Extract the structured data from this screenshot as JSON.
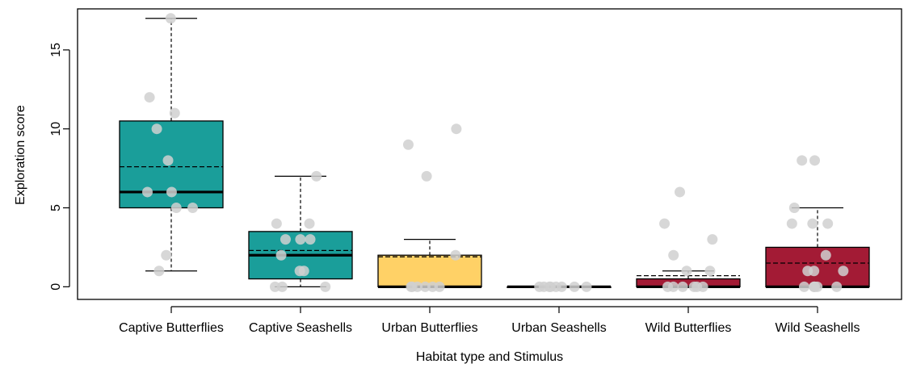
{
  "chart_data": {
    "type": "box",
    "title": "",
    "xlabel": "Habitat type and Stimulus",
    "ylabel": "Exploration score",
    "ylim": [
      -0.8,
      17.6
    ],
    "yticks": [
      0,
      5,
      10,
      15
    ],
    "ytick_labels": [
      "0",
      "5",
      "10",
      "15"
    ],
    "grid": false,
    "legend": "none",
    "categories": [
      "Captive Butterflies",
      "Captive Seashells",
      "Urban Butterflies",
      "Urban Seashells",
      "Wild Butterflies",
      "Wild Seashells"
    ],
    "colors": [
      "#1a9e9a",
      "#1a9e9a",
      "#ffd166",
      "#a31b35",
      "#a31b35",
      "#a31b35"
    ],
    "point_color": "#d0d0d0",
    "boxes": [
      {
        "min": 1,
        "q1": 5,
        "median": 6,
        "q3": 10.5,
        "max": 17,
        "mean": 7.6,
        "points": [
          17,
          11,
          12,
          10,
          8,
          6,
          6,
          5,
          5,
          2,
          1
        ]
      },
      {
        "min": 0,
        "q1": 0.5,
        "median": 2,
        "q3": 3.5,
        "max": 7,
        "mean": 2.3,
        "points": [
          7,
          4,
          4,
          3,
          3,
          3,
          2,
          1,
          1,
          0,
          0,
          0
        ]
      },
      {
        "min": 0,
        "q1": 0,
        "median": 0,
        "q3": 2,
        "max": 3,
        "mean": 1.9,
        "points": [
          10,
          9,
          7,
          2,
          0,
          0,
          0,
          0,
          0,
          0
        ]
      },
      {
        "min": 0,
        "q1": 0,
        "median": 0,
        "q3": 0,
        "max": 0,
        "mean": 0,
        "points": [
          0,
          0,
          0,
          0,
          0,
          0,
          0,
          0
        ]
      },
      {
        "min": 0,
        "q1": 0,
        "median": 0,
        "q3": 0.5,
        "max": 1,
        "mean": 0.7,
        "points": [
          6,
          4,
          3,
          2,
          1,
          1,
          0,
          0,
          0,
          0,
          0,
          0
        ]
      },
      {
        "min": 0,
        "q1": 0,
        "median": 0,
        "q3": 2.5,
        "max": 5,
        "mean": 1.5,
        "points": [
          8,
          8,
          5,
          4,
          4,
          4,
          2,
          1,
          1,
          1,
          0,
          0,
          0,
          0,
          0,
          0
        ]
      }
    ]
  }
}
